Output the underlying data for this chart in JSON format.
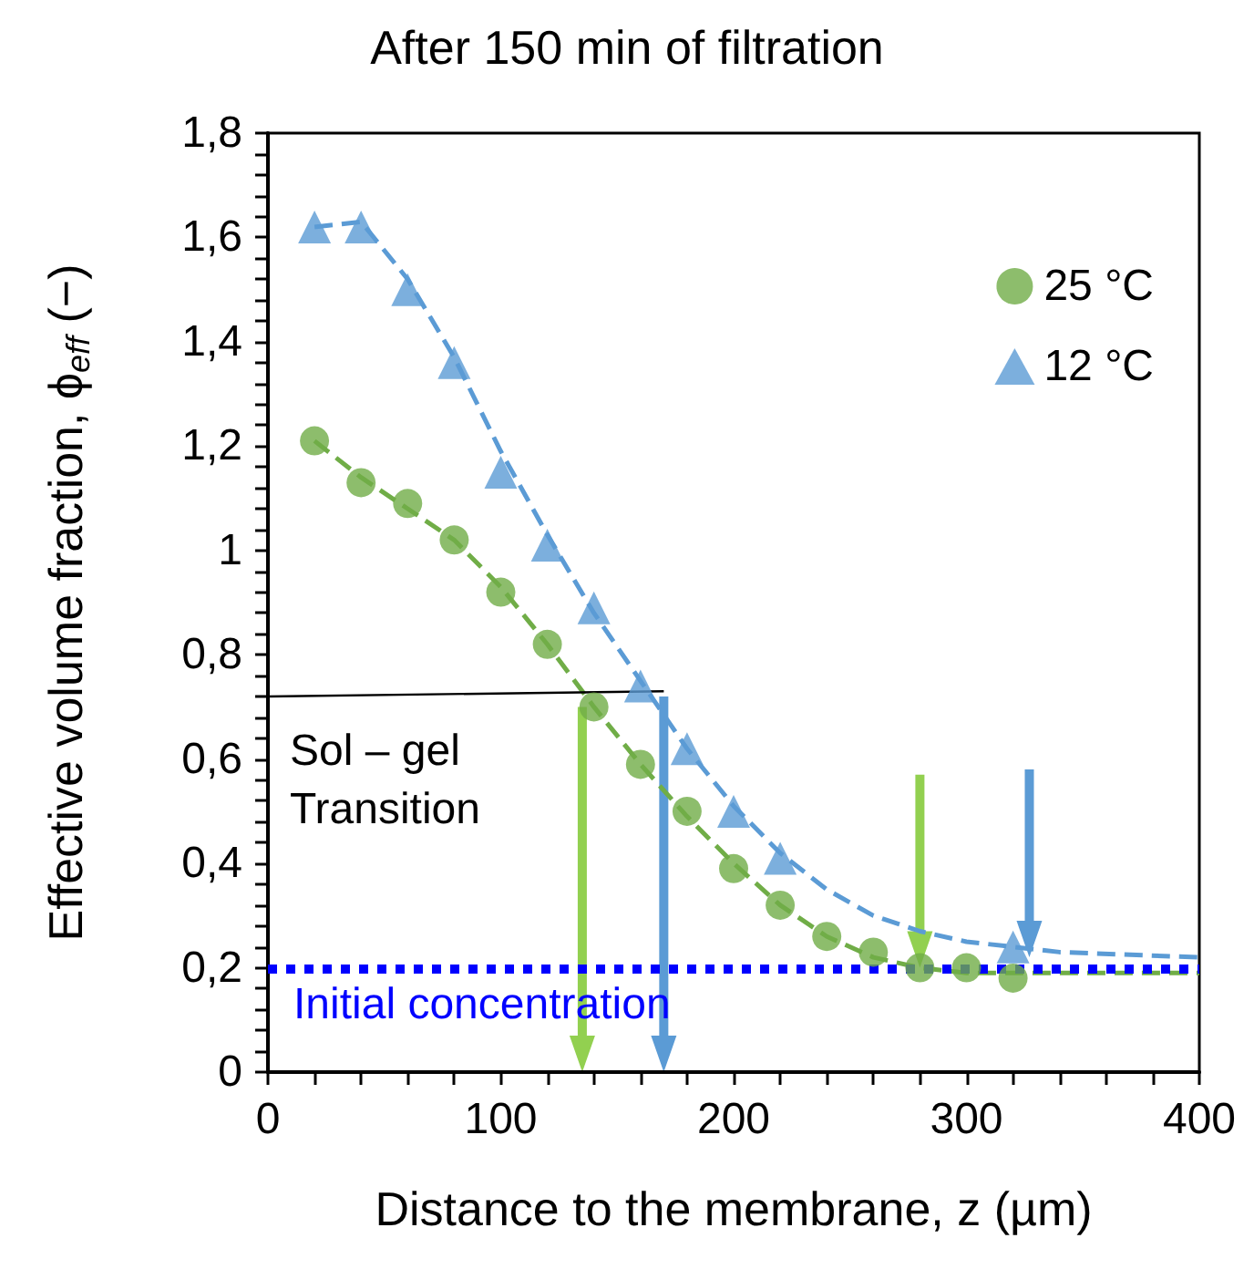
{
  "chart_data": {
    "type": "scatter",
    "title": "After 150 min of filtration",
    "xlabel": "Distance to the membrane, z (µm)",
    "ylabel": "Effective volume fraction, ϕ$_{eff}$ (−)",
    "xlim": [
      0,
      400
    ],
    "ylim": [
      0,
      1.8
    ],
    "xticks": [
      0,
      {
        "value": 20,
        "label": null
      },
      {
        "value": 40,
        "label": null
      },
      {
        "value": 60,
        "label": null
      },
      {
        "value": 80,
        "label": null
      },
      100,
      {
        "value": 120,
        "label": null
      },
      {
        "value": 140,
        "label": null
      },
      {
        "value": 160,
        "label": null
      },
      {
        "value": 180,
        "label": null
      },
      200,
      {
        "value": 220,
        "label": null
      },
      {
        "value": 240,
        "label": null
      },
      {
        "value": 260,
        "label": null
      },
      {
        "value": 280,
        "label": null
      },
      300,
      {
        "value": 320,
        "label": null
      },
      {
        "value": 340,
        "label": null
      },
      {
        "value": 360,
        "label": null
      },
      {
        "value": 380,
        "label": null
      },
      400
    ],
    "yticks": [
      0,
      {
        "value": 0.04,
        "label": null
      },
      {
        "value": 0.08,
        "label": null
      },
      {
        "value": 0.12,
        "label": null
      },
      {
        "value": 0.16,
        "label": null
      },
      {
        "value": 0.2,
        "label": "0,2"
      },
      {
        "value": 0.24,
        "label": null
      },
      {
        "value": 0.28,
        "label": null
      },
      {
        "value": 0.32,
        "label": null
      },
      {
        "value": 0.36,
        "label": null
      },
      {
        "value": 0.4,
        "label": "0,4"
      },
      {
        "value": 0.44,
        "label": null
      },
      {
        "value": 0.48,
        "label": null
      },
      {
        "value": 0.52,
        "label": null
      },
      {
        "value": 0.56,
        "label": null
      },
      {
        "value": 0.6,
        "label": "0,6"
      },
      {
        "value": 0.64,
        "label": null
      },
      {
        "value": 0.68,
        "label": null
      },
      {
        "value": 0.72,
        "label": null
      },
      {
        "value": 0.76,
        "label": null
      },
      {
        "value": 0.8,
        "label": "0,8"
      },
      {
        "value": 0.84,
        "label": null
      },
      {
        "value": 0.88,
        "label": null
      },
      {
        "value": 0.92,
        "label": null
      },
      {
        "value": 0.96,
        "label": null
      },
      1,
      {
        "value": 1.04,
        "label": null
      },
      {
        "value": 1.08,
        "label": null
      },
      {
        "value": 1.12,
        "label": null
      },
      {
        "value": 1.16,
        "label": null
      },
      {
        "value": 1.2,
        "label": "1,2"
      },
      {
        "value": 1.24,
        "label": null
      },
      {
        "value": 1.28,
        "label": null
      },
      {
        "value": 1.32,
        "label": null
      },
      {
        "value": 1.36,
        "label": null
      },
      {
        "value": 1.4,
        "label": "1,4"
      },
      {
        "value": 1.44,
        "label": null
      },
      {
        "value": 1.48,
        "label": null
      },
      {
        "value": 1.52,
        "label": null
      },
      {
        "value": 1.56,
        "label": null
      },
      {
        "value": 1.6,
        "label": "1,6"
      },
      {
        "value": 1.64,
        "label": null
      },
      {
        "value": 1.68,
        "label": null
      },
      {
        "value": 1.72,
        "label": null
      },
      {
        "value": 1.76,
        "label": null
      },
      {
        "value": 1.8,
        "label": "1,8"
      }
    ],
    "grid": false,
    "legend": "top right",
    "series": [
      {
        "type": "line",
        "marker": "none",
        "line_style": "dashed",
        "color": "#70ad47",
        "x": [
          20,
          40,
          60,
          80,
          100,
          120,
          140,
          160,
          180,
          200,
          220,
          240,
          260,
          280,
          300,
          320,
          360,
          400
        ],
        "values": [
          1.21,
          1.14,
          1.08,
          1.02,
          0.93,
          0.82,
          0.7,
          0.59,
          0.49,
          0.4,
          0.32,
          0.26,
          0.22,
          0.2,
          0.19,
          0.19,
          0.19,
          0.19
        ]
      },
      {
        "type": "line",
        "marker": "none",
        "line_style": "dashed",
        "color": "#5b9bd5",
        "x": [
          20,
          40,
          60,
          80,
          100,
          120,
          140,
          160,
          180,
          200,
          220,
          240,
          260,
          280,
          300,
          320,
          340,
          400
        ],
        "values": [
          1.62,
          1.63,
          1.52,
          1.37,
          1.19,
          1.03,
          0.88,
          0.75,
          0.62,
          0.51,
          0.42,
          0.35,
          0.3,
          0.27,
          0.25,
          0.24,
          0.23,
          0.22
        ]
      },
      {
        "name": "25 °C",
        "marker": "circle",
        "color": "#70ad47",
        "x": [
          20,
          40,
          60,
          80,
          100,
          120,
          140,
          160,
          180,
          200,
          220,
          240,
          260,
          280,
          300,
          320
        ],
        "values": [
          1.21,
          1.13,
          1.09,
          1.02,
          0.92,
          0.82,
          0.7,
          0.59,
          0.5,
          0.39,
          0.32,
          0.26,
          0.23,
          0.2,
          0.2,
          0.18
        ]
      },
      {
        "name": "12 °C",
        "marker": "triangle",
        "color": "#5b9bd5",
        "x": [
          20,
          40,
          60,
          80,
          100,
          120,
          140,
          160,
          180,
          200,
          220,
          320
        ],
        "values": [
          1.62,
          1.62,
          1.5,
          1.36,
          1.15,
          1.01,
          0.89,
          0.74,
          0.62,
          0.5,
          0.41,
          0.24
        ]
      },
      {
        "type": "line",
        "marker": "none",
        "line_style": "solid",
        "color": "#000000",
        "x": [
          0,
          170
        ],
        "values": [
          0.72,
          0.73
        ]
      }
    ],
    "ref_lines": [
      {
        "axis": "y",
        "value": 0.2,
        "label": "Initial concentration",
        "color": "#0000ff",
        "line_style": "dotted"
      }
    ],
    "annotations": [
      "Sol – gel\nTransition"
    ]
  }
}
